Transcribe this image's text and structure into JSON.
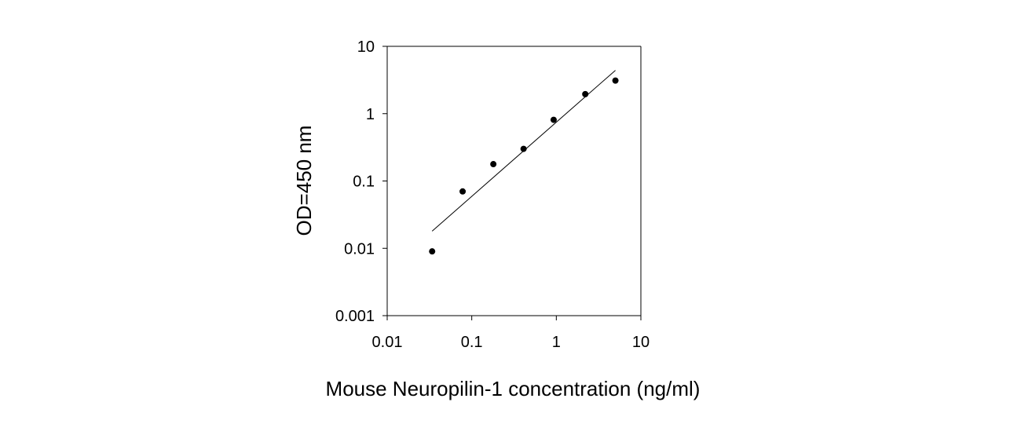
{
  "chart_data": {
    "type": "scatter",
    "title": "",
    "xlabel": "Mouse Neuropilin-1 concentration (ng/ml)",
    "ylabel": "OD=450 nm",
    "xscale": "log",
    "yscale": "log",
    "xlim": [
      0.01,
      10
    ],
    "ylim": [
      0.001,
      10
    ],
    "x_ticks": [
      0.01,
      0.1,
      1,
      10
    ],
    "x_tick_labels": [
      "0.01",
      "0.1",
      "1",
      "10"
    ],
    "y_ticks": [
      0.001,
      0.01,
      0.1,
      1,
      10
    ],
    "y_tick_labels": [
      "0.001",
      "0.01",
      "0.1",
      "1",
      "10"
    ],
    "grid": false,
    "legend": "none",
    "series": [
      {
        "type": "scatter",
        "x": [
          0.034,
          0.078,
          0.18,
          0.41,
          0.93,
          2.2,
          5.0
        ],
        "y": [
          0.009,
          0.07,
          0.178,
          0.3,
          0.81,
          1.95,
          3.1
        ]
      }
    ],
    "fit_line": {
      "x": [
        0.034,
        5.0
      ],
      "y": [
        0.018,
        4.4
      ]
    },
    "colors": {
      "marker": "#000000",
      "line": "#000000",
      "axis": "#000000"
    }
  }
}
